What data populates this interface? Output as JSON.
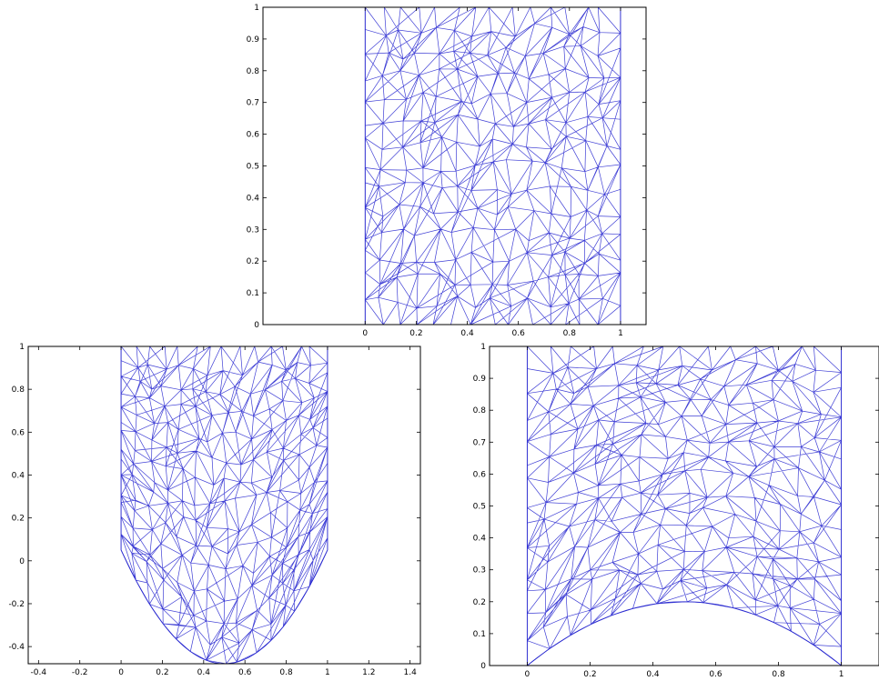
{
  "chart_data": [
    {
      "type": "mesh",
      "title": "",
      "xlabel": "",
      "ylabel": "",
      "xlim": [
        -0.4,
        1.1
      ],
      "ylim": [
        0,
        1
      ],
      "xticks": [
        "0",
        "0.2",
        "0.4",
        "0.6",
        "0.8",
        "1"
      ],
      "yticks": [
        "0",
        "0.1",
        "0.2",
        "0.3",
        "0.4",
        "0.5",
        "0.6",
        "0.7",
        "0.8",
        "0.9",
        "1"
      ],
      "domain": "unit-square",
      "x_range": [
        0,
        1
      ],
      "y_range": [
        0,
        1
      ],
      "grid": false,
      "legend": "none"
    },
    {
      "type": "mesh",
      "title": "",
      "xlabel": "",
      "ylabel": "",
      "xlim": [
        -0.45,
        1.45
      ],
      "ylim": [
        -0.48,
        1
      ],
      "xticks": [
        "-0.4",
        "-0.2",
        "0",
        "0.2",
        "0.4",
        "0.6",
        "0.8",
        "1",
        "1.2",
        "1.4"
      ],
      "yticks": [
        "-0.4",
        "-0.2",
        "0",
        "0.2",
        "0.4",
        "0.6",
        "0.8",
        "1"
      ],
      "domain": "square-with-parabolic-bottom",
      "x_range": [
        0,
        1
      ],
      "y_range": [
        -0.48,
        1
      ],
      "side_bottom_y": 0.05,
      "grid": false,
      "legend": "none"
    },
    {
      "type": "mesh",
      "title": "",
      "xlabel": "",
      "ylabel": "",
      "xlim": [
        -0.12,
        1.12
      ],
      "ylim": [
        0,
        1
      ],
      "xticks": [
        "0",
        "0.2",
        "0.4",
        "0.6",
        "0.8",
        "1"
      ],
      "yticks": [
        "0",
        "0.1",
        "0.2",
        "0.3",
        "0.4",
        "0.5",
        "0.6",
        "0.7",
        "0.8",
        "0.9",
        "1"
      ],
      "domain": "square-with-concave-bottom",
      "x_range": [
        0,
        1
      ],
      "y_range": [
        0,
        1
      ],
      "bottom_mid_y": 0.2,
      "grid": false,
      "legend": "none"
    }
  ],
  "colors": {
    "mesh": "#2a2ad0",
    "axes": "#000000",
    "background": "#ffffff"
  }
}
